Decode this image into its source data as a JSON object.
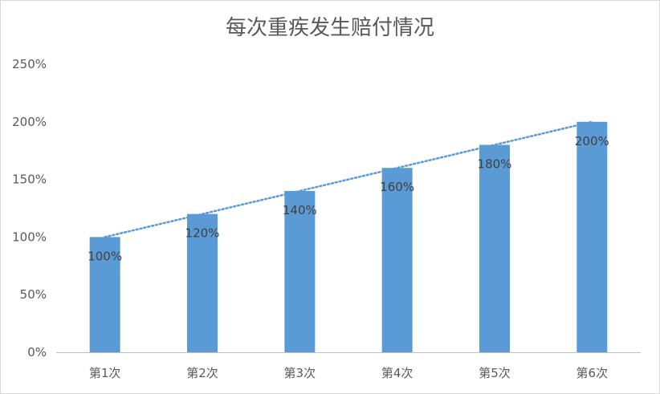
{
  "chart_data": {
    "type": "bar",
    "title": "每次重疾发生赔付情况",
    "xlabel": "",
    "ylabel": "",
    "categories": [
      "第1次",
      "第2次",
      "第3次",
      "第4次",
      "第5次",
      "第6次"
    ],
    "values": [
      100,
      120,
      140,
      160,
      180,
      200
    ],
    "data_labels": [
      "100%",
      "120%",
      "140%",
      "160%",
      "180%",
      "200%"
    ],
    "ylim": [
      0,
      250
    ],
    "yticks": [
      0,
      50,
      100,
      150,
      200,
      250
    ],
    "ytick_labels": [
      "0%",
      "50%",
      "100%",
      "150%",
      "200%",
      "250%"
    ],
    "grid": false,
    "legend": "none",
    "trendline": "linear, dotted",
    "colors": {
      "bar": "#5b9bd5",
      "trendline": "#5b9bd5",
      "axis": "#bfbfbf",
      "text": "#595959"
    }
  }
}
